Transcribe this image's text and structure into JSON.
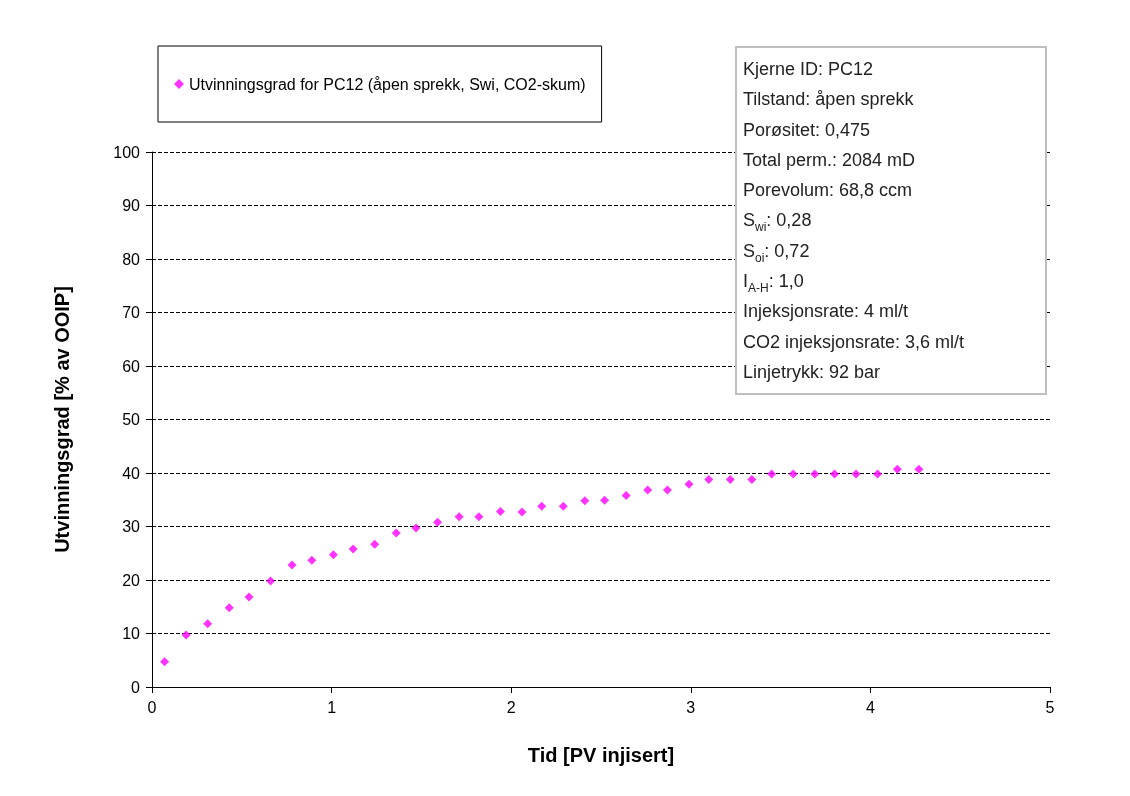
{
  "chart_data": {
    "type": "scatter",
    "xlabel": "Tid [PV injisert]",
    "ylabel": "Utvinningsgrad [% av OOIP]",
    "series": [
      {
        "name": "Utvinningsgrad for PC12 (åpen sprekk, Swi, CO2-skum)",
        "color": "#ff00ff",
        "x": [
          0.07,
          0.19,
          0.31,
          0.43,
          0.54,
          0.66,
          0.78,
          0.89,
          1.01,
          1.12,
          1.24,
          1.36,
          1.47,
          1.59,
          1.71,
          1.82,
          1.94,
          2.06,
          2.17,
          2.29,
          2.41,
          2.52,
          2.64,
          2.76,
          2.87,
          2.99,
          3.1,
          3.22,
          3.34,
          3.45,
          3.57,
          3.69,
          3.8,
          3.92,
          4.04,
          4.15,
          4.27
        ],
        "values": [
          4.7,
          9.7,
          11.8,
          14.8,
          16.8,
          19.8,
          22.8,
          23.7,
          24.7,
          25.8,
          26.7,
          28.8,
          29.7,
          30.8,
          31.8,
          31.8,
          32.8,
          32.7,
          33.8,
          33.8,
          34.8,
          34.9,
          35.8,
          36.8,
          36.8,
          37.9,
          38.8,
          38.8,
          38.8,
          39.8,
          39.8,
          39.8,
          39.8,
          39.8,
          39.8,
          40.7,
          40.7
        ]
      }
    ],
    "xlim": [
      0,
      5
    ],
    "xticks": [
      0,
      1,
      2,
      3,
      4,
      5
    ],
    "ylim": [
      0,
      100
    ],
    "yticks": [
      0,
      10,
      20,
      30,
      40,
      50,
      60,
      70,
      80,
      90,
      100
    ],
    "grid": "y",
    "legend": "top left",
    "marker": "diamond",
    "annotations": [
      "Kjerne ID: PC12",
      "Tilstand: åpen sprekk",
      "Porøsitet: 0,475",
      "Total perm.: 2084 mD",
      "Porevolum: 68,8 ccm",
      "S$_{wi}$: 0,28",
      "S$_{oi}$: 0,72",
      "I$_{A-H}$: 1,0",
      "Injeksjonsrate: 4 ml/t",
      "CO2 injeksjonsrate: 3,6 ml/t",
      "Linjetrykk: 92 bar"
    ]
  }
}
